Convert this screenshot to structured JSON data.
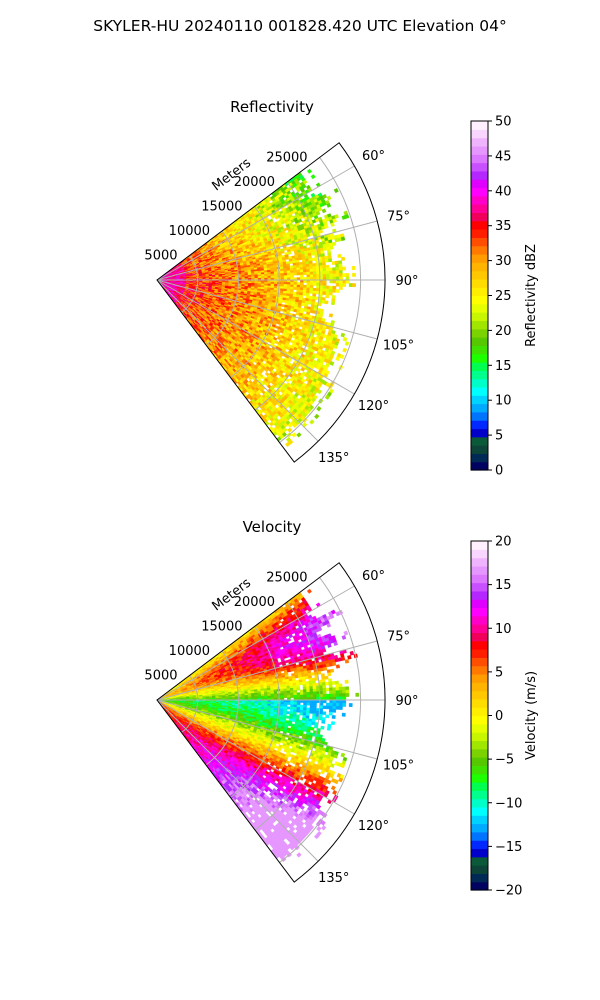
{
  "figure": {
    "title": "SKYLER-HU  20240110  001828.420 UTC Elevation 04°"
  },
  "chart_data": [
    {
      "type": "heatmap",
      "projection": "polar",
      "title": "Reflectivity",
      "radial_axis_label": "Meters",
      "radial_ticks": [
        5000,
        10000,
        15000,
        20000,
        25000
      ],
      "radial_tick_labels": [
        "5000",
        "10000",
        "15000",
        "20000",
        "25000"
      ],
      "rmax": 28000,
      "theta_range_deg": [
        53,
        143
      ],
      "theta_ticks_deg": [
        60,
        75,
        90,
        105,
        120,
        135
      ],
      "theta_tick_labels": [
        "60°",
        "75°",
        "90°",
        "105°",
        "120°",
        "135°"
      ],
      "grid": true,
      "colorbar": {
        "label": "Reflectivity dBZ",
        "range": [
          0,
          50
        ],
        "ticks": [
          0,
          5,
          10,
          15,
          20,
          25,
          30,
          35,
          40,
          45,
          50
        ],
        "tick_labels": [
          "0",
          "5",
          "10",
          "15",
          "20",
          "25",
          "30",
          "35",
          "40",
          "45",
          "50"
        ],
        "colors": [
          "#00035f",
          "#002a55",
          "#0c4438",
          "#0a5a3a",
          "#0000c8",
          "#0028ff",
          "#0073ff",
          "#00aaff",
          "#00d2ff",
          "#00ffff",
          "#00ffc8",
          "#00ff8c",
          "#00ff50",
          "#1eff00",
          "#40e000",
          "#56c800",
          "#7ad200",
          "#a0e600",
          "#c8f500",
          "#e6ff00",
          "#ffff00",
          "#ffee00",
          "#ffdc00",
          "#ffc800",
          "#ffb400",
          "#ff9c00",
          "#ff7800",
          "#ff4e00",
          "#ff1e00",
          "#ff0000",
          "#f0005a",
          "#ff0096",
          "#ff00c8",
          "#ff00ff",
          "#e000ff",
          "#b428ff",
          "#c850ff",
          "#dc78ff",
          "#e696ff",
          "#f0b4ff",
          "#f8d6ff",
          "#ffefff"
        ]
      },
      "field": {
        "description_values_dbz": {
          "near_range_max": 38,
          "mid_range_typical": 27,
          "far_range_typical": 20
        }
      }
    },
    {
      "type": "heatmap",
      "projection": "polar",
      "title": "Velocity",
      "radial_axis_label": "Meters",
      "radial_ticks": [
        5000,
        10000,
        15000,
        20000,
        25000
      ],
      "radial_tick_labels": [
        "5000",
        "10000",
        "15000",
        "20000",
        "25000"
      ],
      "rmax": 28000,
      "theta_range_deg": [
        53,
        143
      ],
      "theta_ticks_deg": [
        60,
        75,
        90,
        105,
        120,
        135
      ],
      "theta_tick_labels": [
        "60°",
        "75°",
        "90°",
        "105°",
        "120°",
        "135°"
      ],
      "grid": true,
      "colorbar": {
        "label": "Velocity (m/s)",
        "range": [
          -20,
          20
        ],
        "ticks": [
          -20,
          -15,
          -10,
          -5,
          0,
          5,
          10,
          15,
          20
        ],
        "tick_labels": [
          "−20",
          "−15",
          "−10",
          "−5",
          "0",
          "5",
          "10",
          "15",
          "20"
        ],
        "colors": [
          "#00035f",
          "#002a55",
          "#0c4438",
          "#0a5a3a",
          "#0000c8",
          "#0028ff",
          "#0073ff",
          "#00aaff",
          "#00d2ff",
          "#00ffff",
          "#00ffc8",
          "#00ff8c",
          "#00ff50",
          "#1eff00",
          "#40e000",
          "#56c800",
          "#7ad200",
          "#a0e600",
          "#c8f500",
          "#e6ff00",
          "#ffff00",
          "#ffee00",
          "#ffdc00",
          "#ffc800",
          "#ffb400",
          "#ff9c00",
          "#ff7800",
          "#ff4e00",
          "#ff1e00",
          "#ff0000",
          "#f0005a",
          "#ff0096",
          "#ff00c8",
          "#ff00ff",
          "#e000ff",
          "#b428ff",
          "#c850ff",
          "#dc78ff",
          "#e696ff",
          "#f0b4ff",
          "#f8d6ff",
          "#ffefff"
        ]
      },
      "field": {
        "description_values_ms": {
          "min": -12,
          "max": 17
        }
      }
    }
  ]
}
